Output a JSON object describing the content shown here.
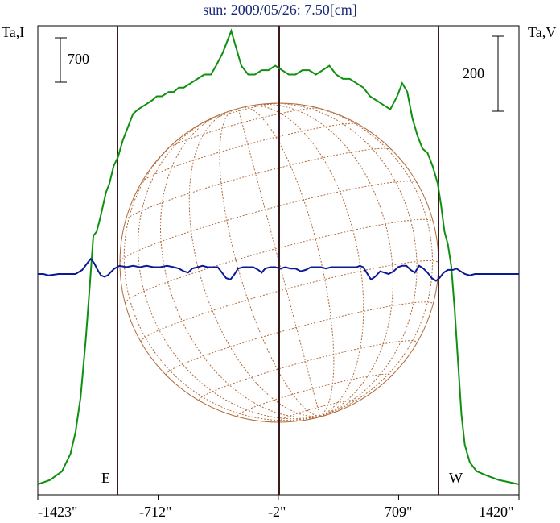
{
  "chart_data": {
    "type": "line",
    "title": "sun: 2009/05/26: 7.50[cm]",
    "left_axis_label": "Ta,I",
    "right_axis_label": "Ta,V",
    "left_scale_bar": "700",
    "right_scale_bar": "200",
    "east_label": "E",
    "west_label": "W",
    "x_ticks": [
      "-1423\"",
      "-712\"",
      "-2\"",
      "709\"",
      "1420\""
    ],
    "x_tick_values": [
      -1423,
      -712,
      -2,
      709,
      1420
    ],
    "xlim": [
      -1423,
      1420
    ],
    "solar_limbs_x": [
      -1000,
      989
    ],
    "center_x": -2,
    "colors": {
      "intensity": "#109010",
      "polarization": "#0a1a96",
      "disk": "#b06a3a",
      "markers": "#3a1a1a",
      "title": "#1a2a7a"
    },
    "series": [
      {
        "key": "intensity",
        "points": [
          [
            -1423,
            0.0
          ],
          [
            -1350,
            0.01
          ],
          [
            -1280,
            0.03
          ],
          [
            -1230,
            0.07
          ],
          [
            -1200,
            0.12
          ],
          [
            -1170,
            0.2
          ],
          [
            -1140,
            0.33
          ],
          [
            -1115,
            0.46
          ],
          [
            -1095,
            0.57
          ],
          [
            -1075,
            0.58
          ],
          [
            -1055,
            0.61
          ],
          [
            -1020,
            0.67
          ],
          [
            -1000,
            0.69
          ],
          [
            -975,
            0.73
          ],
          [
            -950,
            0.75
          ],
          [
            -920,
            0.79
          ],
          [
            -890,
            0.82
          ],
          [
            -860,
            0.85
          ],
          [
            -830,
            0.86
          ],
          [
            -790,
            0.87
          ],
          [
            -750,
            0.88
          ],
          [
            -720,
            0.89
          ],
          [
            -690,
            0.89
          ],
          [
            -650,
            0.9
          ],
          [
            -620,
            0.9
          ],
          [
            -590,
            0.91
          ],
          [
            -560,
            0.91
          ],
          [
            -520,
            0.92
          ],
          [
            -480,
            0.93
          ],
          [
            -440,
            0.94
          ],
          [
            -400,
            0.94
          ],
          [
            -370,
            0.96
          ],
          [
            -330,
            0.99
          ],
          [
            -280,
            1.04
          ],
          [
            -250,
            1.0
          ],
          [
            -220,
            0.96
          ],
          [
            -180,
            0.94
          ],
          [
            -140,
            0.94
          ],
          [
            -100,
            0.95
          ],
          [
            -60,
            0.95
          ],
          [
            -20,
            0.96
          ],
          [
            20,
            0.95
          ],
          [
            60,
            0.94
          ],
          [
            100,
            0.94
          ],
          [
            140,
            0.95
          ],
          [
            180,
            0.95
          ],
          [
            220,
            0.94
          ],
          [
            260,
            0.95
          ],
          [
            300,
            0.96
          ],
          [
            340,
            0.94
          ],
          [
            380,
            0.93
          ],
          [
            420,
            0.93
          ],
          [
            460,
            0.92
          ],
          [
            500,
            0.91
          ],
          [
            540,
            0.89
          ],
          [
            580,
            0.88
          ],
          [
            620,
            0.87
          ],
          [
            660,
            0.86
          ],
          [
            700,
            0.89
          ],
          [
            730,
            0.92
          ],
          [
            760,
            0.9
          ],
          [
            790,
            0.84
          ],
          [
            820,
            0.8
          ],
          [
            850,
            0.77
          ],
          [
            880,
            0.76
          ],
          [
            910,
            0.73
          ],
          [
            940,
            0.69
          ],
          [
            960,
            0.64
          ],
          [
            980,
            0.58
          ],
          [
            1000,
            0.55
          ],
          [
            1020,
            0.5
          ],
          [
            1040,
            0.4
          ],
          [
            1060,
            0.28
          ],
          [
            1080,
            0.16
          ],
          [
            1100,
            0.09
          ],
          [
            1130,
            0.05
          ],
          [
            1170,
            0.03
          ],
          [
            1230,
            0.02
          ],
          [
            1300,
            0.01
          ],
          [
            1420,
            0.0
          ]
        ]
      },
      {
        "key": "polarization",
        "points": [
          [
            -1423,
            0.0
          ],
          [
            -1390,
            0.0
          ],
          [
            -1360,
            -0.01
          ],
          [
            -1300,
            0.0
          ],
          [
            -1250,
            0.0
          ],
          [
            -1200,
            0.0
          ],
          [
            -1160,
            0.03
          ],
          [
            -1130,
            0.08
          ],
          [
            -1110,
            0.11
          ],
          [
            -1090,
            0.08
          ],
          [
            -1070,
            0.03
          ],
          [
            -1050,
            -0.01
          ],
          [
            -1030,
            -0.02
          ],
          [
            -1010,
            -0.01
          ],
          [
            -995,
            0.01
          ],
          [
            -970,
            0.04
          ],
          [
            -940,
            0.06
          ],
          [
            -900,
            0.05
          ],
          [
            -860,
            0.06
          ],
          [
            -820,
            0.05
          ],
          [
            -780,
            0.06
          ],
          [
            -740,
            0.05
          ],
          [
            -700,
            0.05
          ],
          [
            -660,
            0.06
          ],
          [
            -620,
            0.05
          ],
          [
            -590,
            0.04
          ],
          [
            -560,
            0.02
          ],
          [
            -535,
            0.01
          ],
          [
            -510,
            0.04
          ],
          [
            -480,
            0.05
          ],
          [
            -450,
            0.06
          ],
          [
            -420,
            0.05
          ],
          [
            -390,
            0.05
          ],
          [
            -360,
            0.05
          ],
          [
            -335,
            0.01
          ],
          [
            -310,
            -0.03
          ],
          [
            -285,
            -0.04
          ],
          [
            -260,
            0.0
          ],
          [
            -240,
            0.04
          ],
          [
            -210,
            0.05
          ],
          [
            -180,
            0.05
          ],
          [
            -150,
            0.05
          ],
          [
            -120,
            0.03
          ],
          [
            -100,
            0.01
          ],
          [
            -80,
            0.04
          ],
          [
            -50,
            0.05
          ],
          [
            -20,
            0.05
          ],
          [
            10,
            0.04
          ],
          [
            40,
            0.05
          ],
          [
            70,
            0.04
          ],
          [
            100,
            0.04
          ],
          [
            130,
            0.02
          ],
          [
            160,
            0.03
          ],
          [
            190,
            0.05
          ],
          [
            220,
            0.05
          ],
          [
            250,
            0.05
          ],
          [
            280,
            0.04
          ],
          [
            310,
            0.05
          ],
          [
            340,
            0.05
          ],
          [
            370,
            0.05
          ],
          [
            400,
            0.05
          ],
          [
            430,
            0.05
          ],
          [
            460,
            0.05
          ],
          [
            480,
            0.06
          ],
          [
            500,
            0.05
          ],
          [
            520,
            0.01
          ],
          [
            545,
            -0.04
          ],
          [
            570,
            -0.02
          ],
          [
            600,
            0.02
          ],
          [
            625,
            0.01
          ],
          [
            650,
            0.0
          ],
          [
            680,
            0.02
          ],
          [
            705,
            0.05
          ],
          [
            730,
            0.06
          ],
          [
            755,
            0.06
          ],
          [
            780,
            0.03
          ],
          [
            805,
            0.01
          ],
          [
            830,
            0.06
          ],
          [
            855,
            0.04
          ],
          [
            880,
            0.01
          ],
          [
            905,
            -0.03
          ],
          [
            930,
            -0.05
          ],
          [
            950,
            -0.03
          ],
          [
            975,
            0.01
          ],
          [
            1000,
            0.03
          ],
          [
            1030,
            0.03
          ],
          [
            1050,
            0.04
          ],
          [
            1075,
            0.02
          ],
          [
            1100,
            0.0
          ],
          [
            1130,
            -0.01
          ],
          [
            1160,
            0.0
          ],
          [
            1200,
            0.0
          ],
          [
            1260,
            0.0
          ],
          [
            1320,
            0.0
          ],
          [
            1420,
            0.0
          ]
        ]
      }
    ]
  }
}
